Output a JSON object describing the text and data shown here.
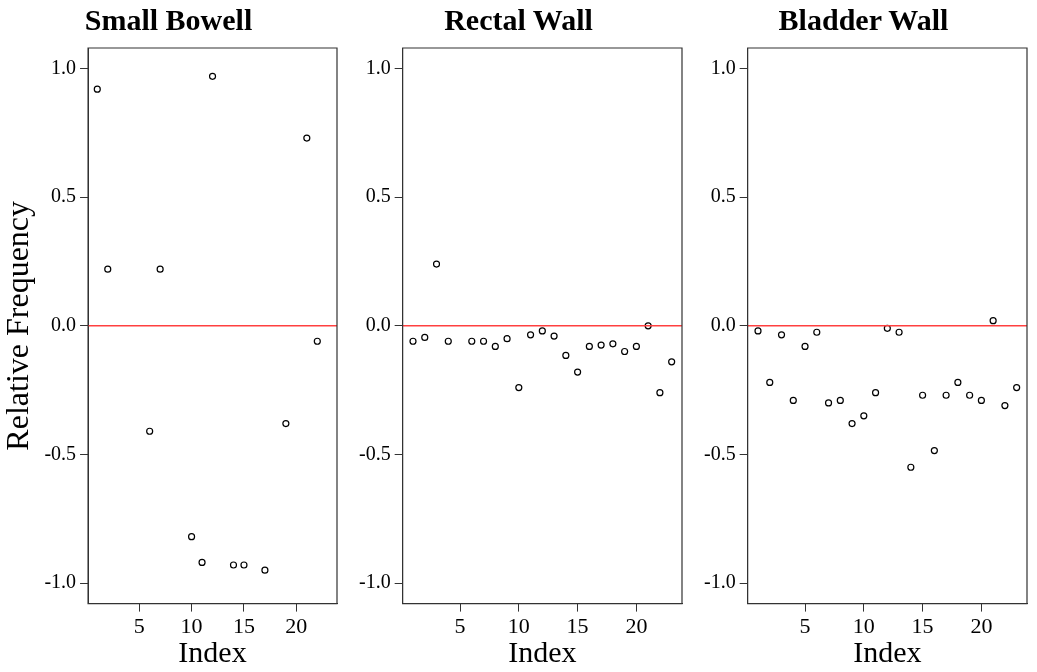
{
  "chart_data": [
    {
      "type": "scatter",
      "title": "Small Bowell",
      "xlabel": "Index",
      "ylabel": "Relative Frequency",
      "marker": "circle",
      "grid": false,
      "x": [
        1,
        2,
        6,
        7,
        10,
        11,
        12,
        14,
        15,
        17,
        19,
        21,
        22
      ],
      "series": [
        {
          "color": "#000000",
          "values": [
            0.92,
            0.22,
            -0.41,
            0.22,
            -0.82,
            -0.92,
            0.97,
            -0.93,
            -0.93,
            -0.95,
            -0.38,
            0.73,
            -0.06
          ]
        }
      ],
      "xlim": [
        0.12,
        23.88
      ],
      "xticks": [
        5,
        10,
        15,
        20
      ],
      "ylim": [
        -1.08,
        1.08
      ],
      "yticks": [
        {
          "value": -1,
          "label": "-1.0"
        },
        {
          "value": -0.5,
          "label": "-0.5"
        },
        {
          "value": 0,
          "label": "0.0"
        },
        {
          "value": 0.5,
          "label": "0.5"
        },
        {
          "value": 1,
          "label": "1.0"
        }
      ],
      "ref_lines": [
        {
          "axis": "y",
          "value": 0,
          "color": "#ff4040"
        }
      ]
    },
    {
      "type": "scatter",
      "title": "Rectal Wall",
      "xlabel": "Index",
      "marker": "circle",
      "grid": false,
      "x": [
        1,
        2,
        3,
        4,
        6,
        7,
        8,
        9,
        10,
        11,
        12,
        13,
        14,
        15,
        16,
        17,
        18,
        19,
        20,
        21,
        22,
        23
      ],
      "series": [
        {
          "color": "#000000",
          "values": [
            -0.06,
            -0.045,
            0.24,
            -0.06,
            -0.06,
            -0.06,
            -0.08,
            -0.05,
            -0.24,
            -0.035,
            -0.02,
            -0.04,
            -0.115,
            -0.18,
            -0.08,
            -0.075,
            -0.07,
            -0.1,
            -0.08,
            0.0,
            -0.26,
            -0.14
          ]
        }
      ],
      "xlim": [
        0.12,
        23.88
      ],
      "xticks": [
        5,
        10,
        15,
        20
      ],
      "ylim": [
        -1.08,
        1.08
      ],
      "yticks": [
        {
          "value": -1,
          "label": "-1.0"
        },
        {
          "value": -0.5,
          "label": "-0.5"
        },
        {
          "value": 0,
          "label": "0.0"
        },
        {
          "value": 0.5,
          "label": "0.5"
        },
        {
          "value": 1,
          "label": "1.0"
        }
      ],
      "ref_lines": [
        {
          "axis": "y",
          "value": 0,
          "color": "#ff4040"
        }
      ]
    },
    {
      "type": "scatter",
      "title": "Bladder Wall",
      "xlabel": "Index",
      "marker": "circle",
      "grid": false,
      "x": [
        1,
        2,
        3,
        4,
        5,
        6,
        7,
        8,
        9,
        10,
        11,
        12,
        13,
        14,
        15,
        16,
        17,
        18,
        19,
        20,
        21,
        22,
        23
      ],
      "series": [
        {
          "color": "#000000",
          "values": [
            -0.02,
            -0.22,
            -0.035,
            -0.29,
            -0.08,
            -0.025,
            -0.3,
            -0.29,
            -0.38,
            -0.35,
            -0.26,
            -0.01,
            -0.025,
            -0.55,
            -0.27,
            -0.485,
            -0.27,
            -0.22,
            -0.27,
            -0.29,
            0.02,
            -0.31,
            -0.24
          ]
        }
      ],
      "xlim": [
        0.12,
        23.88
      ],
      "xticks": [
        5,
        10,
        15,
        20
      ],
      "ylim": [
        -1.08,
        1.08
      ],
      "yticks": [
        {
          "value": -1,
          "label": "-1.0"
        },
        {
          "value": -0.5,
          "label": "-0.5"
        },
        {
          "value": 0,
          "label": "0.0"
        },
        {
          "value": 0.5,
          "label": "0.5"
        },
        {
          "value": 1,
          "label": "1.0"
        }
      ],
      "ref_lines": [
        {
          "axis": "y",
          "value": 0,
          "color": "#ff4040"
        }
      ]
    }
  ]
}
